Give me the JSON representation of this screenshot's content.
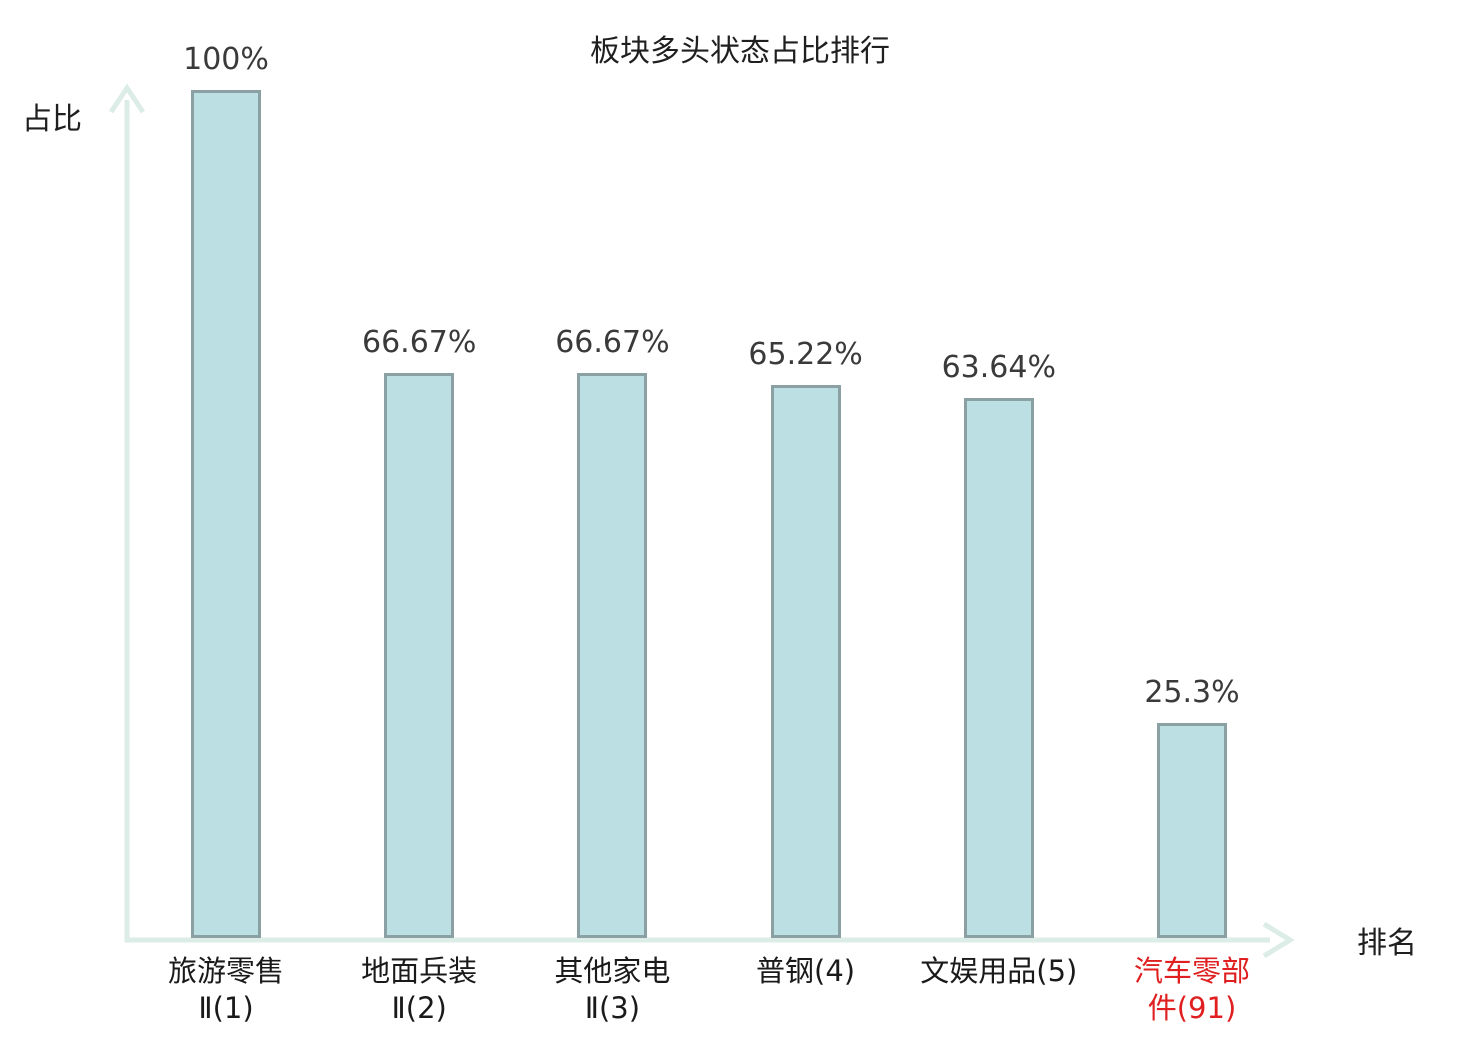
{
  "title": "板块多头状态占比排行",
  "axes": {
    "y_label": "占比",
    "x_label": "排名"
  },
  "colors": {
    "bar_fill": "#bcdfe3",
    "bar_border": "#8ba0a3",
    "axis": "#dcede8",
    "value_label": "#3a3a3a",
    "category_label": "#1a1a1a",
    "highlight": "#e02020",
    "title": "#1f1f1f"
  },
  "chart_data": {
    "type": "bar",
    "title": "板块多头状态占比排行",
    "xlabel": "排名",
    "ylabel": "占比",
    "ylim": [
      0,
      100
    ],
    "grid": false,
    "legend": null,
    "categories": [
      "旅游零售Ⅱ(1)",
      "地面兵装Ⅱ(2)",
      "其他家电Ⅱ(3)",
      "普钢(4)",
      "文娱用品(5)",
      "汽车零部件(91)"
    ],
    "values": [
      100,
      66.67,
      66.67,
      65.22,
      63.64,
      25.3
    ],
    "value_labels": [
      "100%",
      "66.67%",
      "66.67%",
      "65.22%",
      "63.64%",
      "25.3%"
    ],
    "category_display": [
      "旅游零售\nⅡ(1)",
      "地面兵装\nⅡ(2)",
      "其他家电\nⅡ(3)",
      "普钢(4)",
      "文娱用品(5)",
      "汽车零部\n件(91)"
    ],
    "highlighted_category_index": 5
  }
}
